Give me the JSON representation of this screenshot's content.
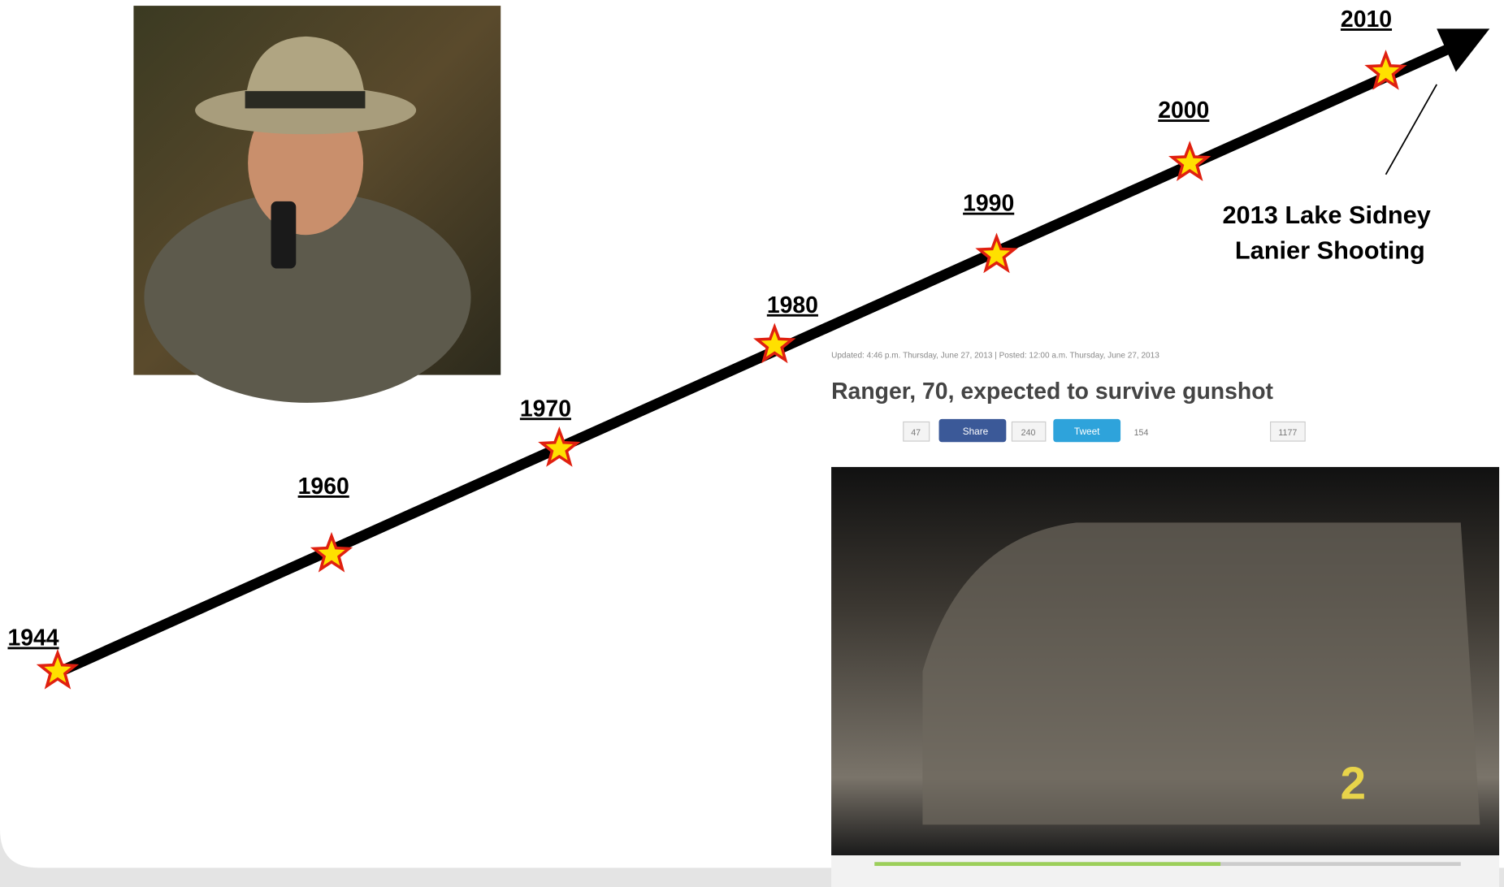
{
  "timeline": {
    "nodes": [
      {
        "label": "1944"
      },
      {
        "label": "1960"
      },
      {
        "label": "1970"
      },
      {
        "label": "1980"
      },
      {
        "label": "1990"
      },
      {
        "label": "2000"
      },
      {
        "label": "2010"
      }
    ],
    "annotation": {
      "line1": "2013 Lake Sidney",
      "line2": "Lanier Shooting"
    }
  },
  "article": {
    "updated": "Updated: 4:46 p.m. Thursday, June 27, 2013 | Posted: 12:00 a.m. Thursday, June 27, 2013",
    "headline": "Ranger, 70, expected to survive gunshot",
    "share_count": "47",
    "share_label": "Share",
    "share_total": "240",
    "tweet_label": "Tweet",
    "tweet_count": "154",
    "comments": "1177",
    "video_logo": "2"
  }
}
